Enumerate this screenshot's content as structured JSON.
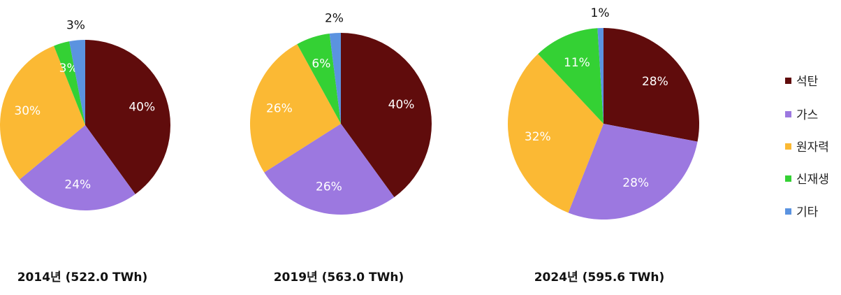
{
  "chart_data": [
    {
      "type": "pie",
      "title": "2014년 (522.0 TWh)",
      "slices": [
        {
          "category": "석탄",
          "value": 40,
          "label": "40%"
        },
        {
          "category": "가스",
          "value": 24,
          "label": "24%"
        },
        {
          "category": "원자력",
          "value": 30,
          "label": "30%"
        },
        {
          "category": "신재생",
          "value": 3,
          "label": "3%"
        },
        {
          "category": "기타",
          "value": 3,
          "label": "3%"
        }
      ]
    },
    {
      "type": "pie",
      "title": "2019년 (563.0 TWh)",
      "slices": [
        {
          "category": "석탄",
          "value": 40,
          "label": "40%"
        },
        {
          "category": "가스",
          "value": 26,
          "label": "26%"
        },
        {
          "category": "원자력",
          "value": 26,
          "label": "26%"
        },
        {
          "category": "신재생",
          "value": 6,
          "label": "6%"
        },
        {
          "category": "기타",
          "value": 2,
          "label": "2%"
        }
      ]
    },
    {
      "type": "pie",
      "title": "2024년 (595.6 TWh)",
      "slices": [
        {
          "category": "석탄",
          "value": 28,
          "label": "28%"
        },
        {
          "category": "가스",
          "value": 28,
          "label": "28%"
        },
        {
          "category": "원자력",
          "value": 32,
          "label": "32%"
        },
        {
          "category": "신재생",
          "value": 11,
          "label": "11%"
        },
        {
          "category": "기타",
          "value": 1,
          "label": "1%"
        }
      ]
    }
  ],
  "legend": {
    "placement": "right",
    "items": [
      {
        "label": "석탄",
        "color": "#600c0c"
      },
      {
        "label": "가스",
        "color": "#9c78e0"
      },
      {
        "label": "원자력",
        "color": "#fbb934"
      },
      {
        "label": "신재생",
        "color": "#34d134"
      },
      {
        "label": "기타",
        "color": "#5b93e0"
      }
    ]
  }
}
